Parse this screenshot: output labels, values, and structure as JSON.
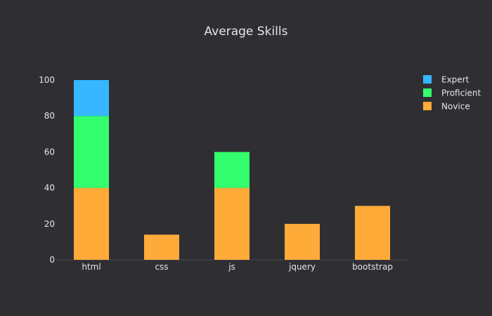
{
  "chart_data": {
    "type": "bar",
    "barmode": "stack",
    "title": "Average Skills",
    "xlabel": "",
    "ylabel": "",
    "categories": [
      "html",
      "css",
      "js",
      "jquery",
      "bootstrap"
    ],
    "series": [
      {
        "name": "Novice",
        "values": [
          40,
          14,
          40,
          20,
          30
        ],
        "color": "#ffab3a"
      },
      {
        "name": "Proficient",
        "values": [
          40,
          0,
          20,
          0,
          0
        ],
        "color": "#33ff6e"
      },
      {
        "name": "Expert",
        "values": [
          20,
          0,
          0,
          0,
          0
        ],
        "color": "#36b7ff"
      }
    ],
    "ylim": [
      0,
      100
    ],
    "yticks": [
      0,
      20,
      40,
      60,
      80,
      100
    ],
    "grid": false,
    "legend_position": "top-right",
    "legend_order": [
      "Expert",
      "Proficient",
      "Novice"
    ]
  },
  "colors": {
    "background": "#2f2f33",
    "text": "#e6e6e6",
    "axis_line": "#4a4a50"
  }
}
